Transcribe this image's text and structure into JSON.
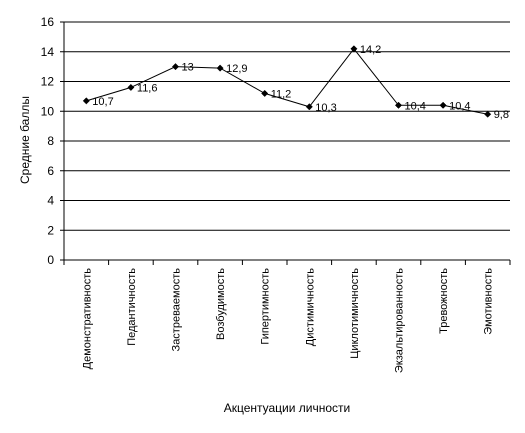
{
  "chart_data": {
    "type": "line",
    "title": "",
    "xlabel": "Акцентуации личности",
    "ylabel": "Средние баллы",
    "ylim": [
      0,
      16
    ],
    "yticks": [
      0,
      2,
      4,
      6,
      8,
      10,
      12,
      14,
      16
    ],
    "ytick_labels": [
      "0",
      "2",
      "4",
      "6",
      "8",
      "10",
      "12",
      "14",
      "16"
    ],
    "grid": true,
    "legend": "none",
    "categories": [
      "Демонстративность",
      "Педантичность",
      "Застреваемость",
      "Возбудимость",
      "Гипертимность",
      "Дистимичность",
      "Циклотимичность",
      "Экзальтированность",
      "Тревожность",
      "Эмотивность"
    ],
    "values": [
      10.7,
      11.6,
      13,
      12.9,
      11.2,
      10.3,
      14.2,
      10.4,
      10.4,
      9.8
    ],
    "data_labels": [
      "10,7",
      "11,6",
      "13",
      "12,9",
      "11,2",
      "10,3",
      "14,2",
      "10,4",
      "10,4",
      "9,8"
    ],
    "line_color": "#000000",
    "marker": "diamond"
  }
}
